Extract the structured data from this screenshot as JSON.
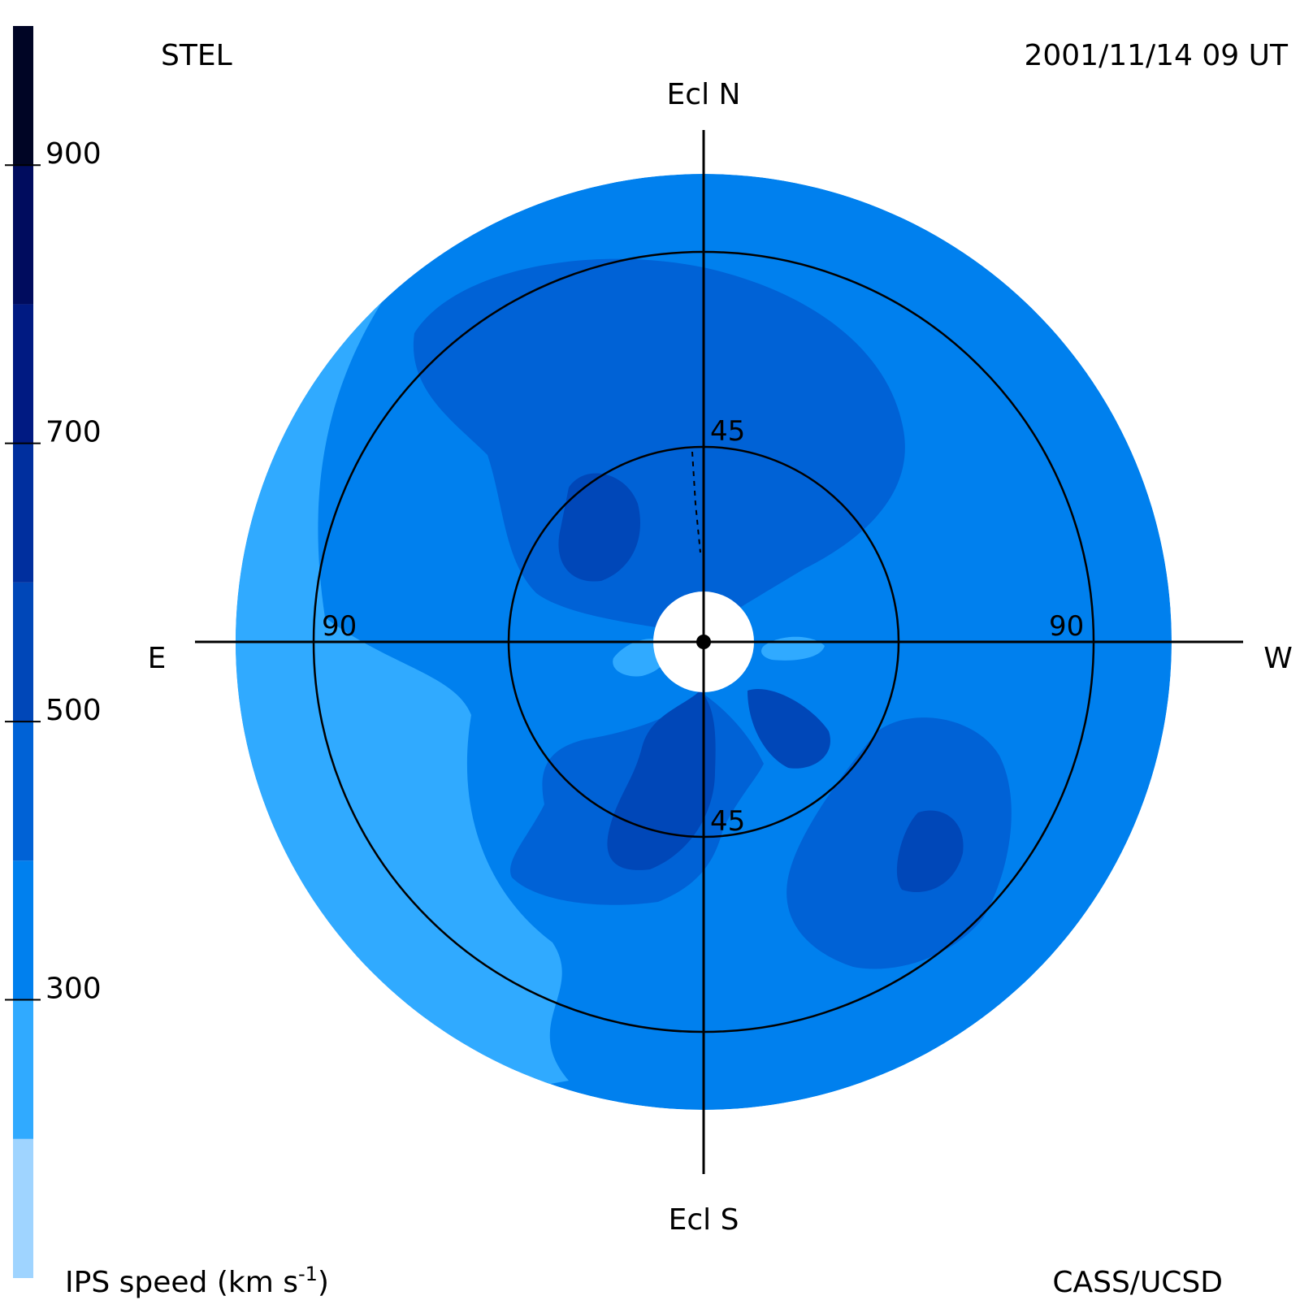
{
  "header": {
    "observatory": "STEL",
    "timestamp": "2001/11/14 09 UT",
    "credit": "CASS/UCSD"
  },
  "directions": {
    "north": "Ecl N",
    "south": "Ecl S",
    "east": "E",
    "west": "W"
  },
  "chart_data": {
    "type": "heatmap",
    "projection": "polar sky map centered on Sun",
    "colorbar": {
      "label_prefix": "IPS speed (km s",
      "label_suffix": ")",
      "label_exp": "-1",
      "ticks": [
        "900",
        "700",
        "500",
        "300"
      ],
      "tick_values": [
        900,
        700,
        500,
        300
      ],
      "range": [
        100,
        1000
      ],
      "bands": [
        {
          "min": 100,
          "max": 200,
          "color": "#9fd4ff"
        },
        {
          "min": 200,
          "max": 300,
          "color": "#30aaff"
        },
        {
          "min": 300,
          "max": 400,
          "color": "#0080ee"
        },
        {
          "min": 400,
          "max": 500,
          "color": "#0062d6"
        },
        {
          "min": 500,
          "max": 600,
          "color": "#0047b8"
        },
        {
          "min": 600,
          "max": 700,
          "color": "#002f9e"
        },
        {
          "min": 700,
          "max": 800,
          "color": "#001a82"
        },
        {
          "min": 800,
          "max": 900,
          "color": "#000c5e"
        },
        {
          "min": 900,
          "max": 1000,
          "color": "#000525"
        }
      ]
    },
    "rings": [
      {
        "elongation_deg": 45,
        "labels": [
          "45",
          "45"
        ]
      },
      {
        "elongation_deg": 90,
        "labels": [
          "90",
          "90"
        ]
      }
    ],
    "max_elongation_deg": 108,
    "regions": [
      {
        "name": "background",
        "speed": 350
      },
      {
        "name": "east-limb-slow",
        "speed": 250
      },
      {
        "name": "north-fast-lobe",
        "speed": 450
      },
      {
        "name": "north-core",
        "speed": 550
      },
      {
        "name": "south-fast-lobe",
        "speed": 450
      },
      {
        "name": "south-core",
        "speed": 550
      },
      {
        "name": "southwest-fast-lobe",
        "speed": 450
      },
      {
        "name": "southwest-core",
        "speed": 550
      },
      {
        "name": "west-core",
        "speed": 550
      },
      {
        "name": "near-sun-east-slow",
        "speed": 250
      },
      {
        "name": "near-sun-west-slow",
        "speed": 250
      }
    ],
    "grid": true
  }
}
